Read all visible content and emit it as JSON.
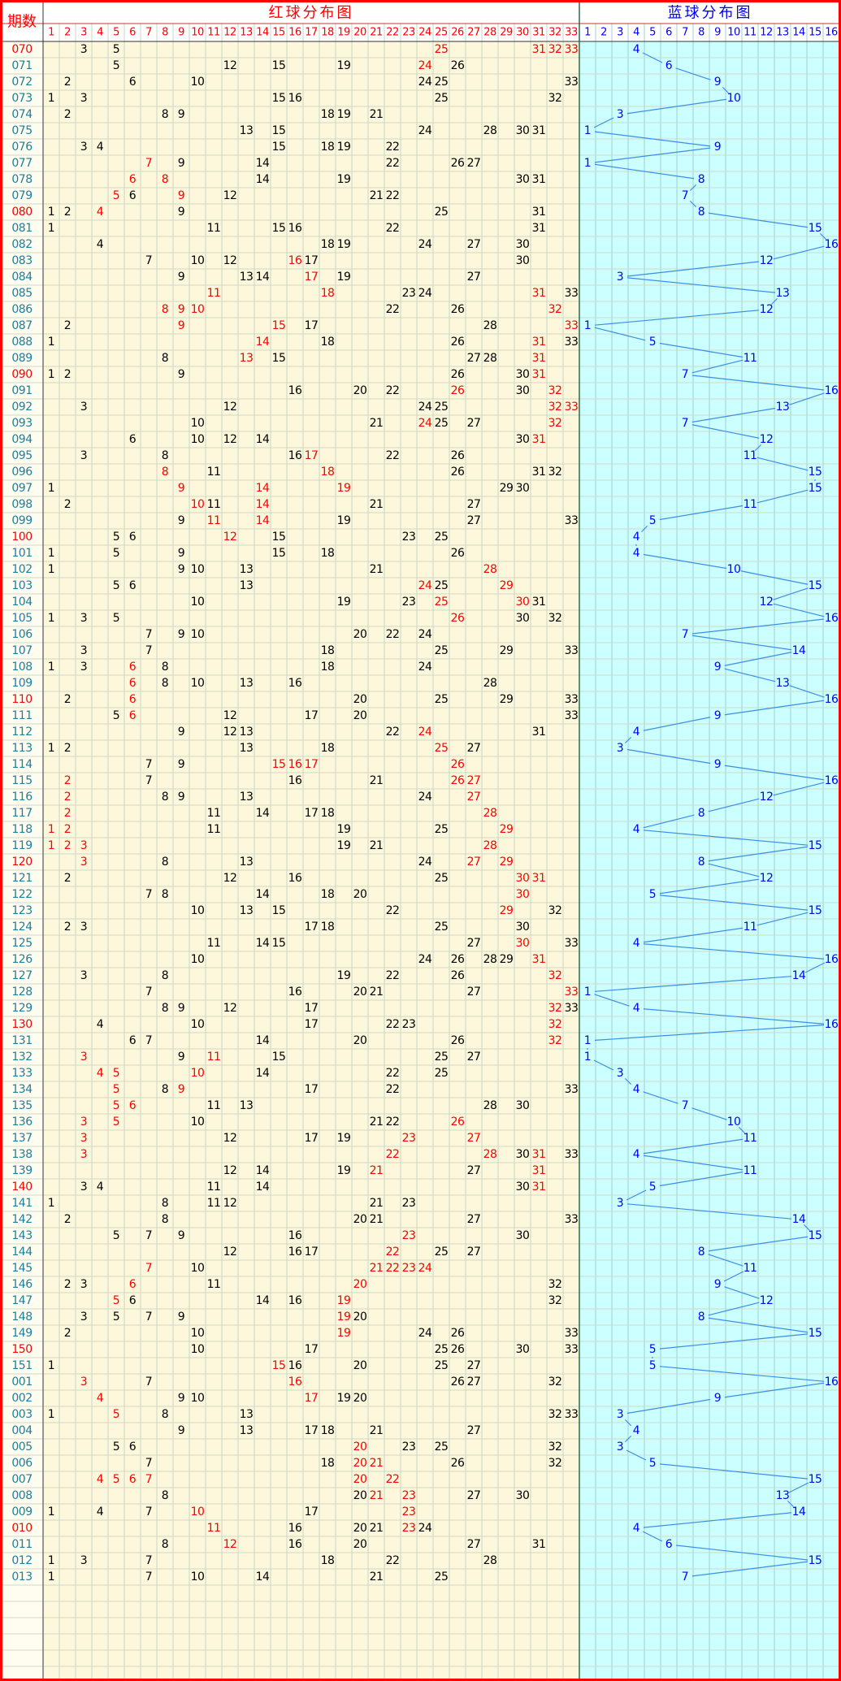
{
  "header": {
    "issue_label": "期数",
    "red_title": "红球分布图",
    "blue_title": "蓝球分布图",
    "red_columns": [
      1,
      2,
      3,
      4,
      5,
      6,
      7,
      8,
      9,
      10,
      11,
      12,
      13,
      14,
      15,
      16,
      17,
      18,
      19,
      20,
      21,
      22,
      23,
      24,
      25,
      26,
      27,
      28,
      29,
      30,
      31,
      32,
      33
    ],
    "blue_columns": [
      1,
      2,
      3,
      4,
      5,
      6,
      7,
      8,
      9,
      10,
      11,
      12,
      13,
      14,
      15,
      16
    ]
  },
  "rows": [
    {
      "issue": "070",
      "red": [
        3,
        5,
        25,
        31,
        32,
        33
      ],
      "red_hl": [
        25,
        31,
        32,
        33
      ],
      "blue": 4
    },
    {
      "issue": "071",
      "red": [
        5,
        12,
        15,
        19,
        24,
        26
      ],
      "red_hl": [
        24
      ],
      "blue": 6
    },
    {
      "issue": "072",
      "red": [
        2,
        6,
        10,
        24,
        25,
        33
      ],
      "red_hl": [],
      "blue": 9
    },
    {
      "issue": "073",
      "red": [
        1,
        3,
        15,
        16,
        25,
        32
      ],
      "red_hl": [],
      "blue": 10
    },
    {
      "issue": "074",
      "red": [
        2,
        8,
        9,
        18,
        19,
        21
      ],
      "red_hl": [],
      "blue": 3
    },
    {
      "issue": "075",
      "red": [
        13,
        15,
        24,
        28,
        30,
        31
      ],
      "red_hl": [],
      "blue": 1
    },
    {
      "issue": "076",
      "red": [
        3,
        4,
        15,
        18,
        19,
        22
      ],
      "red_hl": [],
      "blue": 9
    },
    {
      "issue": "077",
      "red": [
        7,
        9,
        14,
        22,
        26,
        27
      ],
      "red_hl": [
        7
      ],
      "blue": 1
    },
    {
      "issue": "078",
      "red": [
        6,
        8,
        14,
        19,
        30,
        31
      ],
      "red_hl": [
        6,
        8
      ],
      "blue": 8
    },
    {
      "issue": "079",
      "red": [
        5,
        6,
        9,
        12,
        21,
        22
      ],
      "red_hl": [
        5,
        9
      ],
      "blue": 7
    },
    {
      "issue": "080",
      "red": [
        1,
        2,
        4,
        9,
        25,
        31
      ],
      "red_hl": [
        4
      ],
      "blue": 8
    },
    {
      "issue": "081",
      "red": [
        1,
        11,
        15,
        16,
        22,
        31
      ],
      "red_hl": [],
      "blue": 15
    },
    {
      "issue": "082",
      "red": [
        4,
        18,
        19,
        24,
        27,
        30
      ],
      "red_hl": [],
      "blue": 16
    },
    {
      "issue": "083",
      "red": [
        7,
        10,
        12,
        16,
        17,
        30
      ],
      "red_hl": [
        16
      ],
      "blue": 12
    },
    {
      "issue": "084",
      "red": [
        9,
        13,
        14,
        17,
        19,
        27
      ],
      "red_hl": [
        17
      ],
      "blue": 3
    },
    {
      "issue": "085",
      "red": [
        11,
        18,
        23,
        24,
        31,
        33
      ],
      "red_hl": [
        11,
        18,
        31
      ],
      "blue": 13
    },
    {
      "issue": "086",
      "red": [
        8,
        9,
        10,
        22,
        26,
        32
      ],
      "red_hl": [
        8,
        9,
        10,
        32
      ],
      "blue": 12
    },
    {
      "issue": "087",
      "red": [
        2,
        9,
        15,
        17,
        28,
        33
      ],
      "red_hl": [
        9,
        15,
        33
      ],
      "blue": 1
    },
    {
      "issue": "088",
      "red": [
        1,
        14,
        18,
        26,
        31,
        33
      ],
      "red_hl": [
        14,
        31
      ],
      "blue": 5
    },
    {
      "issue": "089",
      "red": [
        8,
        13,
        15,
        27,
        28,
        31
      ],
      "red_hl": [
        13,
        31
      ],
      "blue": 11
    },
    {
      "issue": "090",
      "red": [
        1,
        2,
        9,
        26,
        30,
        31
      ],
      "red_hl": [
        31
      ],
      "blue": 7
    },
    {
      "issue": "091",
      "red": [
        16,
        20,
        22,
        26,
        30,
        32
      ],
      "red_hl": [
        26,
        32
      ],
      "blue": 16
    },
    {
      "issue": "092",
      "red": [
        3,
        12,
        24,
        25,
        32,
        33
      ],
      "red_hl": [
        32,
        33
      ],
      "blue": 13
    },
    {
      "issue": "093",
      "red": [
        10,
        21,
        24,
        25,
        27,
        32
      ],
      "red_hl": [
        24,
        32
      ],
      "blue": 7
    },
    {
      "issue": "094",
      "red": [
        6,
        10,
        12,
        14,
        30,
        31
      ],
      "red_hl": [
        31
      ],
      "blue": 12
    },
    {
      "issue": "095",
      "red": [
        3,
        8,
        16,
        17,
        22,
        26
      ],
      "red_hl": [
        17
      ],
      "blue": 11
    },
    {
      "issue": "096",
      "red": [
        8,
        11,
        18,
        26,
        31,
        32
      ],
      "red_hl": [
        8,
        18
      ],
      "blue": 15
    },
    {
      "issue": "097",
      "red": [
        1,
        9,
        14,
        19,
        29,
        30
      ],
      "red_hl": [
        9,
        14,
        19
      ],
      "blue": 15
    },
    {
      "issue": "098",
      "red": [
        2,
        10,
        11,
        14,
        21,
        27
      ],
      "red_hl": [
        10,
        14
      ],
      "blue": 11
    },
    {
      "issue": "099",
      "red": [
        9,
        11,
        14,
        19,
        27,
        33
      ],
      "red_hl": [
        11,
        14
      ],
      "blue": 5
    },
    {
      "issue": "100",
      "red": [
        5,
        6,
        12,
        15,
        23,
        25
      ],
      "red_hl": [
        12
      ],
      "blue": 4
    },
    {
      "issue": "101",
      "red": [
        1,
        5,
        9,
        15,
        18,
        26
      ],
      "red_hl": [],
      "blue": 4
    },
    {
      "issue": "102",
      "red": [
        1,
        9,
        10,
        13,
        21,
        28
      ],
      "red_hl": [
        28
      ],
      "blue": 10
    },
    {
      "issue": "103",
      "red": [
        5,
        6,
        13,
        24,
        25,
        29
      ],
      "red_hl": [
        24,
        29
      ],
      "blue": 15
    },
    {
      "issue": "104",
      "red": [
        10,
        19,
        23,
        25,
        30,
        31
      ],
      "red_hl": [
        25,
        30
      ],
      "blue": 12
    },
    {
      "issue": "105",
      "red": [
        1,
        3,
        5,
        26,
        30,
        32
      ],
      "red_hl": [
        26
      ],
      "blue": 16
    },
    {
      "issue": "106",
      "red": [
        7,
        9,
        10,
        20,
        22,
        24
      ],
      "red_hl": [],
      "blue": 7
    },
    {
      "issue": "107",
      "red": [
        3,
        7,
        18,
        25,
        29,
        33
      ],
      "red_hl": [],
      "blue": 14
    },
    {
      "issue": "108",
      "red": [
        1,
        3,
        6,
        8,
        18,
        24
      ],
      "red_hl": [
        6
      ],
      "blue": 9
    },
    {
      "issue": "109",
      "red": [
        6,
        8,
        10,
        13,
        16,
        28
      ],
      "red_hl": [
        6
      ],
      "blue": 13
    },
    {
      "issue": "110",
      "red": [
        2,
        6,
        20,
        25,
        29,
        33
      ],
      "red_hl": [
        6
      ],
      "blue": 16
    },
    {
      "issue": "111",
      "red": [
        5,
        6,
        12,
        17,
        20,
        33
      ],
      "red_hl": [
        6
      ],
      "blue": 9
    },
    {
      "issue": "112",
      "red": [
        9,
        12,
        13,
        22,
        24,
        31
      ],
      "red_hl": [
        24
      ],
      "blue": 4
    },
    {
      "issue": "113",
      "red": [
        1,
        2,
        13,
        18,
        25,
        27
      ],
      "red_hl": [
        25
      ],
      "blue": 3
    },
    {
      "issue": "114",
      "red": [
        7,
        9,
        15,
        16,
        17,
        26
      ],
      "red_hl": [
        15,
        16,
        17,
        26
      ],
      "blue": 9
    },
    {
      "issue": "115",
      "red": [
        2,
        7,
        16,
        21,
        26,
        27
      ],
      "red_hl": [
        2,
        26,
        27
      ],
      "blue": 16
    },
    {
      "issue": "116",
      "red": [
        2,
        8,
        9,
        13,
        24,
        27
      ],
      "red_hl": [
        2,
        27
      ],
      "blue": 12
    },
    {
      "issue": "117",
      "red": [
        2,
        11,
        14,
        17,
        18,
        28
      ],
      "red_hl": [
        2,
        28
      ],
      "blue": 8
    },
    {
      "issue": "118",
      "red": [
        1,
        2,
        11,
        19,
        25,
        29
      ],
      "red_hl": [
        1,
        2,
        29
      ],
      "blue": 4
    },
    {
      "issue": "119",
      "red": [
        1,
        2,
        3,
        19,
        21,
        28
      ],
      "red_hl": [
        1,
        2,
        3,
        28
      ],
      "blue": 15
    },
    {
      "issue": "120",
      "red": [
        3,
        8,
        13,
        24,
        27,
        29
      ],
      "red_hl": [
        3,
        27,
        29
      ],
      "blue": 8
    },
    {
      "issue": "121",
      "red": [
        2,
        12,
        16,
        25,
        30,
        31
      ],
      "red_hl": [
        30,
        31
      ],
      "blue": 12
    },
    {
      "issue": "122",
      "red": [
        7,
        8,
        14,
        18,
        20,
        30
      ],
      "red_hl": [
        30
      ],
      "blue": 5
    },
    {
      "issue": "123",
      "red": [
        10,
        13,
        15,
        22,
        29,
        32
      ],
      "red_hl": [
        29
      ],
      "blue": 15
    },
    {
      "issue": "124",
      "red": [
        2,
        3,
        17,
        18,
        25,
        30
      ],
      "red_hl": [],
      "blue": 11
    },
    {
      "issue": "125",
      "red": [
        11,
        14,
        15,
        27,
        30,
        33
      ],
      "red_hl": [
        30
      ],
      "blue": 4
    },
    {
      "issue": "126",
      "red": [
        10,
        24,
        26,
        28,
        29,
        31
      ],
      "red_hl": [
        31
      ],
      "blue": 16
    },
    {
      "issue": "127",
      "red": [
        3,
        8,
        19,
        22,
        26,
        32
      ],
      "red_hl": [
        32
      ],
      "blue": 14
    },
    {
      "issue": "128",
      "red": [
        7,
        16,
        20,
        21,
        27,
        33
      ],
      "red_hl": [
        33
      ],
      "blue": 1
    },
    {
      "issue": "129",
      "red": [
        8,
        9,
        12,
        17,
        32,
        33
      ],
      "red_hl": [
        32
      ],
      "blue": 4
    },
    {
      "issue": "130",
      "red": [
        4,
        10,
        17,
        22,
        23,
        32
      ],
      "red_hl": [
        32
      ],
      "blue": 16
    },
    {
      "issue": "131",
      "red": [
        6,
        7,
        14,
        20,
        26,
        32
      ],
      "red_hl": [
        32
      ],
      "blue": 1
    },
    {
      "issue": "132",
      "red": [
        3,
        9,
        11,
        15,
        25,
        27
      ],
      "red_hl": [
        3,
        11
      ],
      "blue": 1
    },
    {
      "issue": "133",
      "red": [
        4,
        5,
        10,
        14,
        22,
        25
      ],
      "red_hl": [
        4,
        5,
        10
      ],
      "blue": 3
    },
    {
      "issue": "134",
      "red": [
        5,
        8,
        9,
        17,
        22,
        33
      ],
      "red_hl": [
        5,
        9
      ],
      "blue": 4
    },
    {
      "issue": "135",
      "red": [
        5,
        6,
        11,
        13,
        28,
        30
      ],
      "red_hl": [
        5,
        6
      ],
      "blue": 7
    },
    {
      "issue": "136",
      "red": [
        3,
        5,
        10,
        21,
        22,
        26
      ],
      "red_hl": [
        3,
        5,
        26
      ],
      "blue": 10
    },
    {
      "issue": "137",
      "red": [
        3,
        12,
        17,
        19,
        23,
        27
      ],
      "red_hl": [
        3,
        23,
        27
      ],
      "blue": 11
    },
    {
      "issue": "138",
      "red": [
        3,
        22,
        28,
        30,
        31,
        33
      ],
      "red_hl": [
        3,
        22,
        28,
        31
      ],
      "blue": 4
    },
    {
      "issue": "139",
      "red": [
        12,
        14,
        19,
        21,
        27,
        31
      ],
      "red_hl": [
        21,
        31
      ],
      "blue": 11
    },
    {
      "issue": "140",
      "red": [
        3,
        4,
        11,
        14,
        30,
        31
      ],
      "red_hl": [
        31
      ],
      "blue": 5
    },
    {
      "issue": "141",
      "red": [
        1,
        8,
        11,
        12,
        21,
        23
      ],
      "red_hl": [],
      "blue": 3
    },
    {
      "issue": "142",
      "red": [
        2,
        8,
        20,
        21,
        27,
        33
      ],
      "red_hl": [],
      "blue": 14
    },
    {
      "issue": "143",
      "red": [
        5,
        7,
        9,
        16,
        23,
        30
      ],
      "red_hl": [
        23
      ],
      "blue": 15
    },
    {
      "issue": "144",
      "red": [
        12,
        16,
        17,
        22,
        25,
        27
      ],
      "red_hl": [
        22
      ],
      "blue": 8
    },
    {
      "issue": "145",
      "red": [
        7,
        10,
        21,
        22,
        23,
        24
      ],
      "red_hl": [
        7,
        21,
        22,
        23,
        24
      ],
      "blue": 11
    },
    {
      "issue": "146",
      "red": [
        2,
        3,
        6,
        11,
        20,
        32
      ],
      "red_hl": [
        6,
        20
      ],
      "blue": 9
    },
    {
      "issue": "147",
      "red": [
        5,
        6,
        14,
        16,
        19,
        32
      ],
      "red_hl": [
        5,
        19
      ],
      "blue": 12
    },
    {
      "issue": "148",
      "red": [
        3,
        5,
        7,
        9,
        19,
        20
      ],
      "red_hl": [
        19
      ],
      "blue": 8
    },
    {
      "issue": "149",
      "red": [
        2,
        10,
        19,
        24,
        26,
        33
      ],
      "red_hl": [
        19
      ],
      "blue": 15
    },
    {
      "issue": "150",
      "red": [
        10,
        17,
        25,
        26,
        30,
        33
      ],
      "red_hl": [],
      "blue": 5
    },
    {
      "issue": "151",
      "red": [
        1,
        15,
        16,
        20,
        25,
        27
      ],
      "red_hl": [
        15
      ],
      "blue": 5
    },
    {
      "issue": "001",
      "red": [
        3,
        7,
        16,
        26,
        27,
        32
      ],
      "red_hl": [
        3,
        16
      ],
      "blue": 16
    },
    {
      "issue": "002",
      "red": [
        4,
        9,
        10,
        17,
        19,
        20
      ],
      "red_hl": [
        4,
        17
      ],
      "blue": 9
    },
    {
      "issue": "003",
      "red": [
        1,
        5,
        8,
        13,
        32,
        33
      ],
      "red_hl": [
        5
      ],
      "blue": 3
    },
    {
      "issue": "004",
      "red": [
        9,
        13,
        17,
        18,
        21,
        27
      ],
      "red_hl": [],
      "blue": 4
    },
    {
      "issue": "005",
      "red": [
        5,
        6,
        20,
        23,
        25,
        32
      ],
      "red_hl": [
        20
      ],
      "blue": 3
    },
    {
      "issue": "006",
      "red": [
        7,
        18,
        20,
        21,
        26,
        32
      ],
      "red_hl": [
        20,
        21
      ],
      "blue": 5
    },
    {
      "issue": "007",
      "red": [
        4,
        5,
        6,
        7,
        20,
        22
      ],
      "red_hl": [
        4,
        5,
        6,
        7,
        20,
        22
      ],
      "blue": 15
    },
    {
      "issue": "008",
      "red": [
        8,
        20,
        21,
        23,
        27,
        30
      ],
      "red_hl": [
        21,
        23
      ],
      "blue": 13
    },
    {
      "issue": "009",
      "red": [
        1,
        4,
        7,
        10,
        17,
        23
      ],
      "red_hl": [
        10,
        23
      ],
      "blue": 14
    },
    {
      "issue": "010",
      "red": [
        11,
        16,
        20,
        21,
        23,
        24
      ],
      "red_hl": [
        11,
        23
      ],
      "blue": 4
    },
    {
      "issue": "011",
      "red": [
        8,
        12,
        16,
        20,
        27,
        31
      ],
      "red_hl": [
        12
      ],
      "blue": 6
    },
    {
      "issue": "012",
      "red": [
        1,
        3,
        7,
        18,
        22,
        28
      ],
      "red_hl": [],
      "blue": 15
    },
    {
      "issue": "013",
      "red": [
        1,
        7,
        10,
        14,
        21,
        25
      ],
      "red_hl": [],
      "blue": 7
    }
  ]
}
